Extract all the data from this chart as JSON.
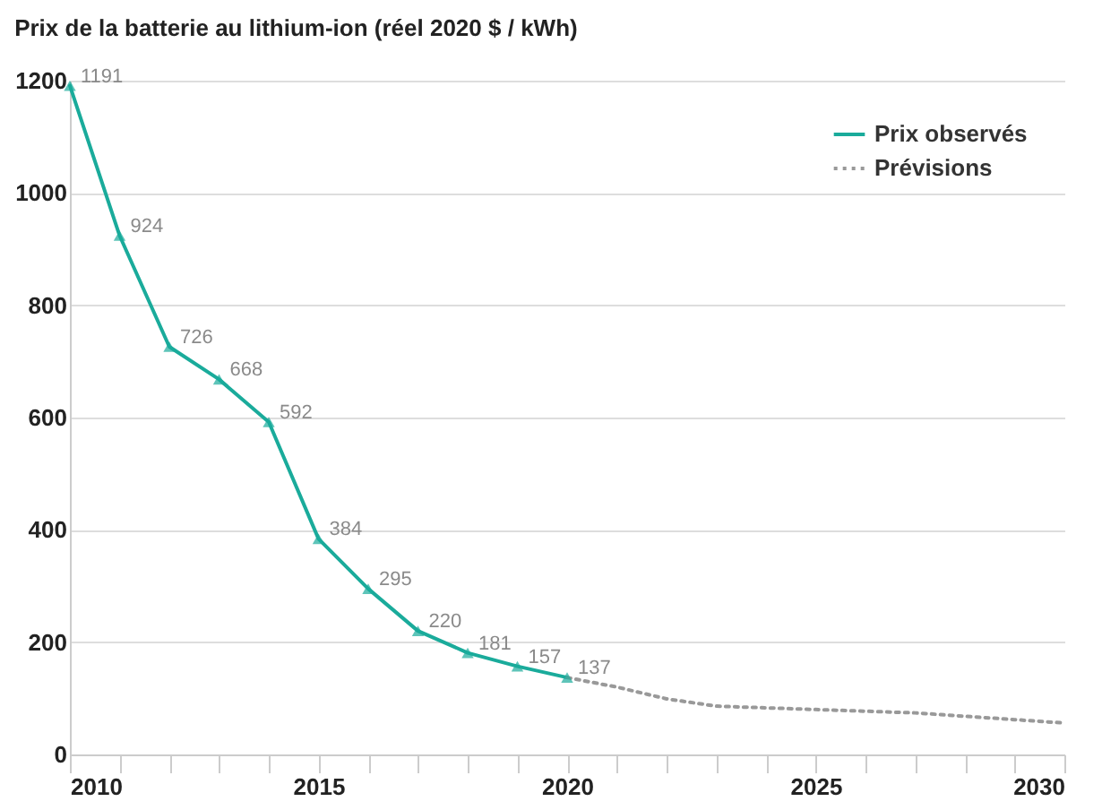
{
  "chart_data": {
    "type": "line",
    "title": "Prix de la batterie au lithium-ion (réel 2020 $ / kWh)",
    "series": [
      {
        "name": "Prix observés",
        "color": "#1aab9b",
        "marker": "triangle",
        "line_style": "solid",
        "x": [
          2010,
          2011,
          2012,
          2013,
          2014,
          2015,
          2016,
          2017,
          2018,
          2019,
          2020
        ],
        "values": [
          1191,
          924,
          726,
          668,
          592,
          384,
          295,
          220,
          181,
          157,
          137
        ],
        "value_labels": [
          "1191",
          "924",
          "726",
          "668",
          "592",
          "384",
          "295",
          "220",
          "181",
          "157",
          "137"
        ]
      },
      {
        "name": "Prévisions",
        "color": "#999999",
        "marker": "none",
        "line_style": "dotted",
        "x": [
          2020,
          2021,
          2022,
          2023,
          2024,
          2025,
          2026,
          2027,
          2028,
          2029,
          2030
        ],
        "values": [
          137,
          120,
          99,
          86,
          83,
          80,
          77,
          74,
          68,
          62,
          56
        ]
      }
    ],
    "xlim": [
      2010,
      2030
    ],
    "xticks": [
      2010,
      {
        "value": 2011,
        "label": null
      },
      {
        "value": 2012,
        "label": null
      },
      {
        "value": 2013,
        "label": null
      },
      {
        "value": 2014,
        "label": null
      },
      2015,
      {
        "value": 2016,
        "label": null
      },
      {
        "value": 2017,
        "label": null
      },
      {
        "value": 2018,
        "label": null
      },
      {
        "value": 2019,
        "label": null
      },
      2020,
      {
        "value": 2021,
        "label": null
      },
      {
        "value": 2022,
        "label": null
      },
      {
        "value": 2023,
        "label": null
      },
      {
        "value": 2024,
        "label": null
      },
      2025,
      {
        "value": 2026,
        "label": null
      },
      {
        "value": 2027,
        "label": null
      },
      {
        "value": 2028,
        "label": null
      },
      {
        "value": 2029,
        "label": null
      },
      2030
    ],
    "ylim": [
      0,
      1200
    ],
    "yticks": [
      0,
      200,
      400,
      600,
      800,
      1000,
      1200
    ],
    "grid": "y",
    "legend": "top right"
  }
}
